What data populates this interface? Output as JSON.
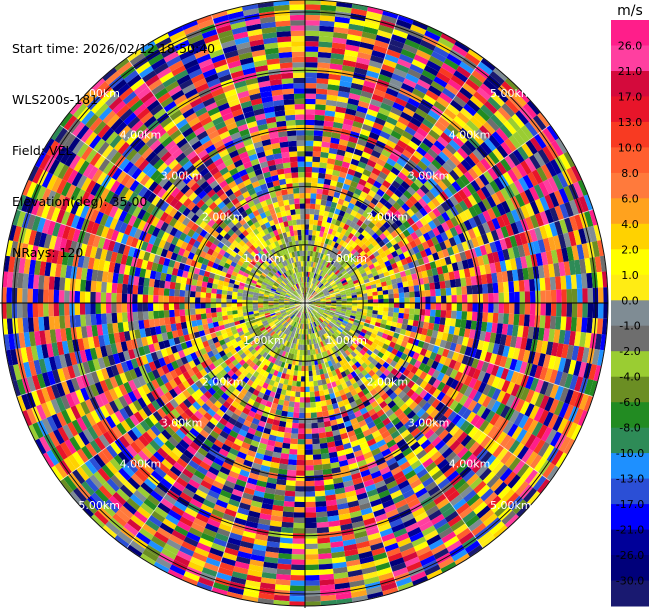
{
  "info": {
    "start_time": "Start time: 2026/02/12 18:50:40",
    "instrument": "WLS200s-181",
    "field": "Field: VEL",
    "elevation": "Elevation(deg): 35.00",
    "nrays": "NRays: 120"
  },
  "colorbar": {
    "unit": "m/s",
    "ticks": [
      "26.0",
      "21.0",
      "17.0",
      "13.0",
      "10.0",
      "8.0",
      "6.0",
      "4.0",
      "2.0",
      "1.0",
      "0.0",
      "-1.0",
      "-2.0",
      "-4.0",
      "-6.0",
      "-8.0",
      "-10.0",
      "-13.0",
      "-17.0",
      "-21.0",
      "-26.0",
      "-30.0"
    ],
    "colors": [
      "#ff1e8a",
      "#ff3fa0",
      "#d40a3c",
      "#e8152a",
      "#f83a22",
      "#ff5e2e",
      "#ff7a3c",
      "#ffa21e",
      "#ffd200",
      "#ffff00",
      "#ffec14",
      "#7f8c94",
      "#6e6e6e",
      "#9acd32",
      "#6b8e23",
      "#228b22",
      "#2e8b57",
      "#1e90ff",
      "#2b4fd6",
      "#0000ff",
      "#000099",
      "#00007a",
      "#191970"
    ]
  },
  "range_labels": [
    "1.00km",
    "2.00km",
    "3.00km",
    "4.00km",
    "5.00km"
  ],
  "chart_data": {
    "type": "heatmap",
    "title": "",
    "field": "VEL",
    "units": "m/s",
    "elevation_deg": 35.0,
    "nrays": 120,
    "range_rings_km": [
      1,
      2,
      3,
      4,
      5
    ],
    "max_range_km": 5.2,
    "color_range": [
      -30.0,
      26.0
    ]
  }
}
